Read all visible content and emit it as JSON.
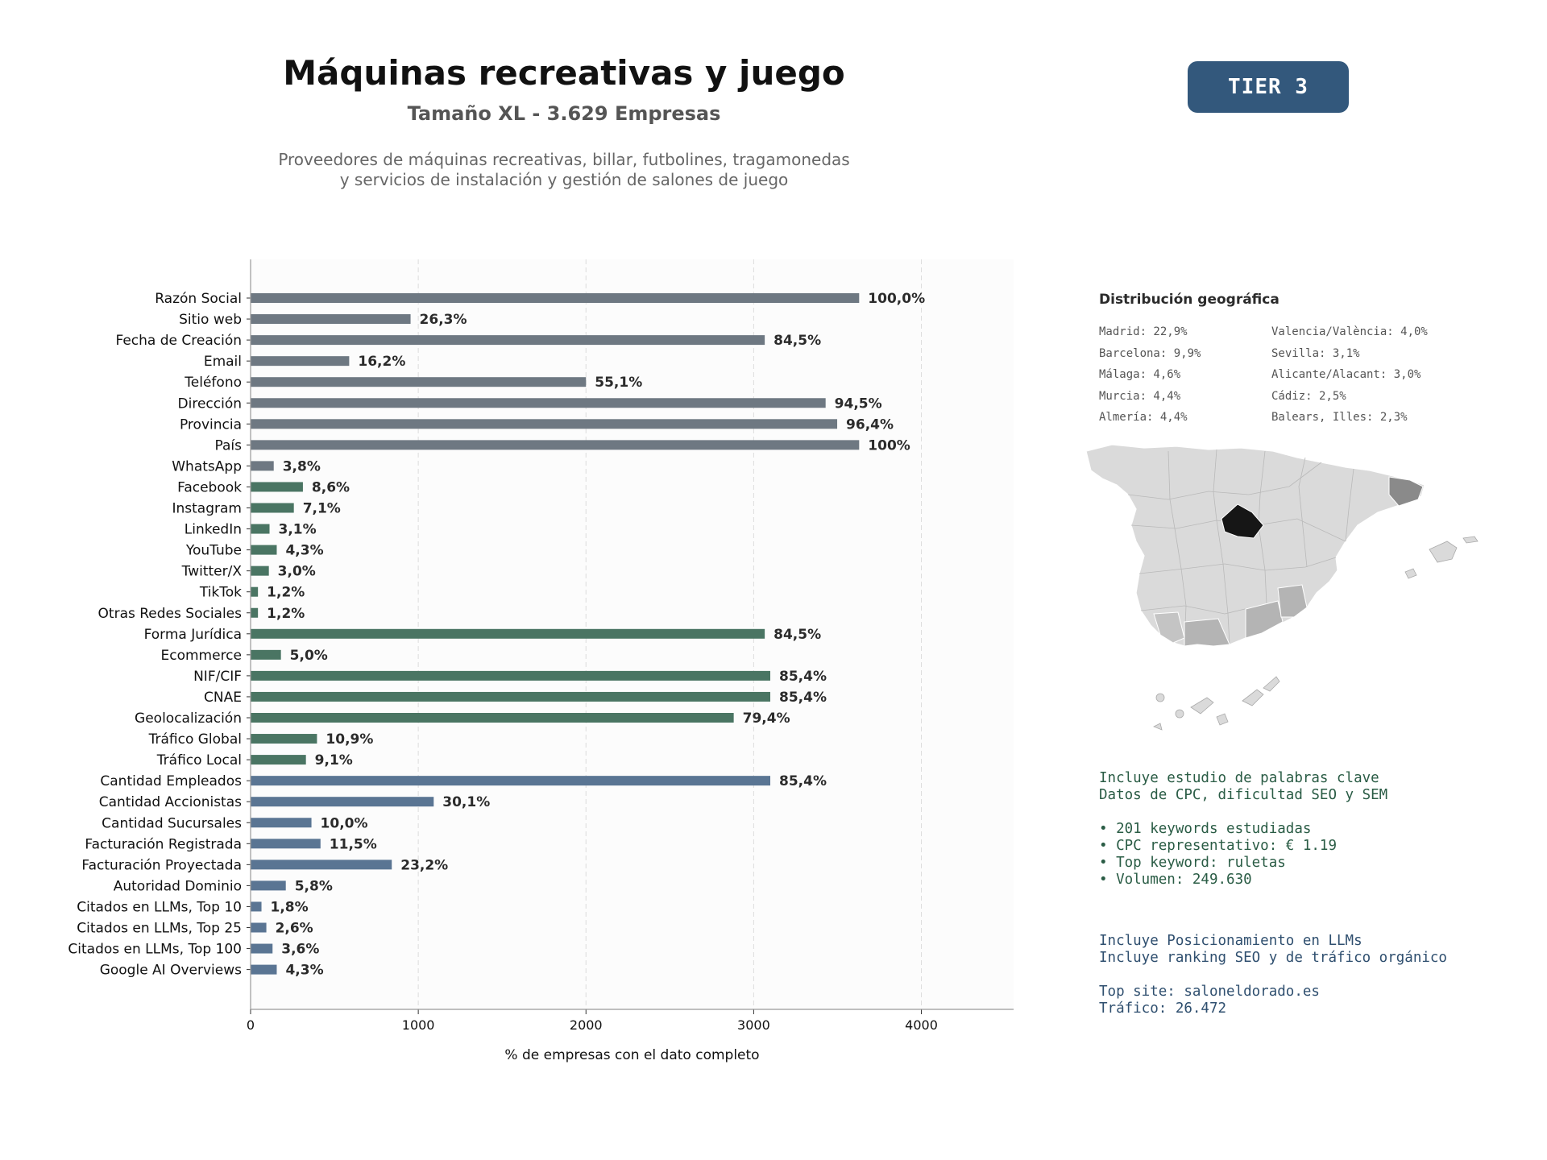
{
  "header": {
    "title": "Máquinas recreativas y juego",
    "subtitle": "Tamaño XL - 3.629 Empresas",
    "description_line1": "Proveedores de máquinas recreativas, billar, futbolines, tragamonedas",
    "description_line2": "y servicios de instalación y gestión de salones de juego",
    "tier": "TIER 3"
  },
  "chart_data": {
    "type": "bar",
    "orientation": "horizontal",
    "total_companies": 3629,
    "xlabel": "% de empresas con el dato completo",
    "xlim": [
      0,
      4550
    ],
    "xticks": [
      0,
      1000,
      2000,
      3000,
      4000
    ],
    "grid": true,
    "colors": {
      "basic": "#6e7882",
      "digital": "#4a7563",
      "business": "#5a7593"
    },
    "bars": [
      {
        "category": "Razón Social",
        "value": 3629,
        "label": "100,0%",
        "group": "basic"
      },
      {
        "category": "Sitio web",
        "value": 954,
        "label": "26,3%",
        "group": "basic"
      },
      {
        "category": "Fecha de Creación",
        "value": 3066,
        "label": "84,5%",
        "group": "basic"
      },
      {
        "category": "Email",
        "value": 588,
        "label": "16,2%",
        "group": "basic"
      },
      {
        "category": "Teléfono",
        "value": 2000,
        "label": "55,1%",
        "group": "basic"
      },
      {
        "category": "Dirección",
        "value": 3429,
        "label": "94,5%",
        "group": "basic"
      },
      {
        "category": "Provincia",
        "value": 3498,
        "label": "96,4%",
        "group": "basic"
      },
      {
        "category": "País",
        "value": 3629,
        "label": "100%",
        "group": "basic"
      },
      {
        "category": "WhatsApp",
        "value": 138,
        "label": "3,8%",
        "group": "basic"
      },
      {
        "category": "Facebook",
        "value": 312,
        "label": "8,6%",
        "group": "digital"
      },
      {
        "category": "Instagram",
        "value": 258,
        "label": "7,1%",
        "group": "digital"
      },
      {
        "category": "LinkedIn",
        "value": 113,
        "label": "3,1%",
        "group": "digital"
      },
      {
        "category": "YouTube",
        "value": 156,
        "label": "4,3%",
        "group": "digital"
      },
      {
        "category": "Twitter/X",
        "value": 109,
        "label": "3,0%",
        "group": "digital"
      },
      {
        "category": "TikTok",
        "value": 44,
        "label": "1,2%",
        "group": "digital"
      },
      {
        "category": "Otras Redes Sociales",
        "value": 44,
        "label": "1,2%",
        "group": "digital"
      },
      {
        "category": "Forma Jurídica",
        "value": 3066,
        "label": "84,5%",
        "group": "digital"
      },
      {
        "category": "Ecommerce",
        "value": 181,
        "label": "5,0%",
        "group": "digital"
      },
      {
        "category": "NIF/CIF",
        "value": 3099,
        "label": "85,4%",
        "group": "digital"
      },
      {
        "category": "CNAE",
        "value": 3099,
        "label": "85,4%",
        "group": "digital"
      },
      {
        "category": "Geolocalización",
        "value": 2881,
        "label": "79,4%",
        "group": "digital"
      },
      {
        "category": "Tráfico Global",
        "value": 396,
        "label": "10,9%",
        "group": "digital"
      },
      {
        "category": "Tráfico Local",
        "value": 330,
        "label": "9,1%",
        "group": "digital"
      },
      {
        "category": "Cantidad Empleados",
        "value": 3099,
        "label": "85,4%",
        "group": "business"
      },
      {
        "category": "Cantidad Accionistas",
        "value": 1092,
        "label": "30,1%",
        "group": "business"
      },
      {
        "category": "Cantidad Sucursales",
        "value": 363,
        "label": "10,0%",
        "group": "business"
      },
      {
        "category": "Facturación Registrada",
        "value": 417,
        "label": "11,5%",
        "group": "business"
      },
      {
        "category": "Facturación Proyectada",
        "value": 842,
        "label": "23,2%",
        "group": "business"
      },
      {
        "category": "Autoridad Dominio",
        "value": 210,
        "label": "5,8%",
        "group": "business"
      },
      {
        "category": "Citados en LLMs, Top 10",
        "value": 65,
        "label": "1,8%",
        "group": "business"
      },
      {
        "category": "Citados en LLMs, Top 25",
        "value": 94,
        "label": "2,6%",
        "group": "business"
      },
      {
        "category": "Citados en LLMs, Top 100",
        "value": 131,
        "label": "3,6%",
        "group": "business"
      },
      {
        "category": "Google AI Overviews",
        "value": 156,
        "label": "4,3%",
        "group": "business"
      }
    ]
  },
  "geo": {
    "title": "Distribución geográfica",
    "items_left": [
      "Madrid: 22,9%",
      "Barcelona: 9,9%",
      "Málaga: 4,6%",
      "Murcia: 4,4%",
      "Almería: 4,4%"
    ],
    "items_right": [
      "Valencia/València: 4,0%",
      "Sevilla: 3,1%",
      "Alicante/Alacant: 3,0%",
      "Cádiz: 2,5%",
      "Balears, Illes: 2,3%"
    ]
  },
  "keywords": {
    "line1": "Incluye estudio de palabras clave",
    "line2": "Datos de CPC, dificultad SEO y SEM",
    "bullet1": "• 201 keywords estudiadas",
    "bullet2": "• CPC representativo: € 1.19",
    "bullet3": "• Top keyword: ruletas",
    "bullet4": "• Volumen: 249.630"
  },
  "llm": {
    "line1": "Incluye Posicionamiento en LLMs",
    "line2": "Incluye ranking SEO y de tráfico orgánico",
    "line3": "Top site: saloneldorado.es",
    "line4": "Tráfico: 26.472"
  }
}
